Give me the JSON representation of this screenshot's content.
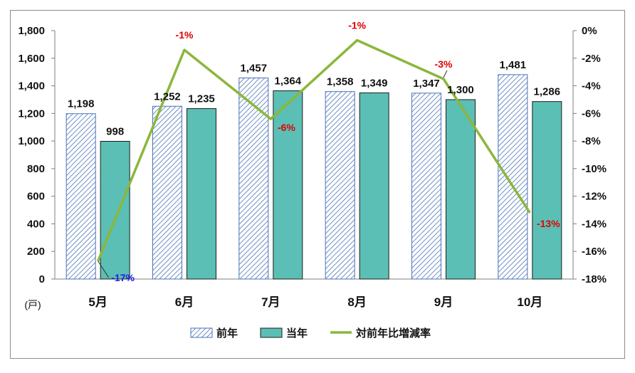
{
  "chart_data": {
    "type": "bar",
    "categories": [
      "5月",
      "6月",
      "7月",
      "8月",
      "9月",
      "10月"
    ],
    "series": [
      {
        "name": "前年",
        "kind": "bar",
        "axis": "left",
        "color": "#4a72b8",
        "pattern": "diagonal-hatch",
        "values": [
          1198,
          1252,
          1457,
          1358,
          1347,
          1481
        ],
        "labels": [
          "1,198",
          "1,252",
          "1,457",
          "1,358",
          "1,347",
          "1,481"
        ]
      },
      {
        "name": "当年",
        "kind": "bar",
        "axis": "left",
        "color": "#5bbfb5",
        "values": [
          998,
          1235,
          1364,
          1349,
          1300,
          1286
        ],
        "labels": [
          "998",
          "1,235",
          "1,364",
          "1,349",
          "1,300",
          "1,286"
        ]
      },
      {
        "name": "対前年比増減率",
        "kind": "line",
        "axis": "right",
        "color": "#8cb63c",
        "values": [
          -16.7,
          -1.4,
          -6.4,
          -0.7,
          -3.5,
          -13.2
        ],
        "labels": [
          "-17%",
          "-1%",
          "-6%",
          "-1%",
          "-3%",
          "-13%"
        ],
        "label_colors": [
          "#1f1fe6",
          "#e00000",
          "#e00000",
          "#e00000",
          "#e00000",
          "#e00000"
        ]
      }
    ],
    "y_left": {
      "min": 0,
      "max": 1800,
      "step": 200,
      "tick_labels": [
        "0",
        "200",
        "400",
        "600",
        "800",
        "1,000",
        "1,200",
        "1,400",
        "1,600",
        "1,800"
      ],
      "unit": "(戸)"
    },
    "y_right": {
      "min": -18,
      "max": 0,
      "step": 2,
      "tick_labels": [
        "-18%",
        "-16%",
        "-14%",
        "-12%",
        "-10%",
        "-8%",
        "-6%",
        "-4%",
        "-2%",
        "0%"
      ]
    },
    "legend": {
      "position": "bottom",
      "entries": [
        "前年",
        "当年",
        "対前年比増減率"
      ]
    },
    "grid": false
  }
}
